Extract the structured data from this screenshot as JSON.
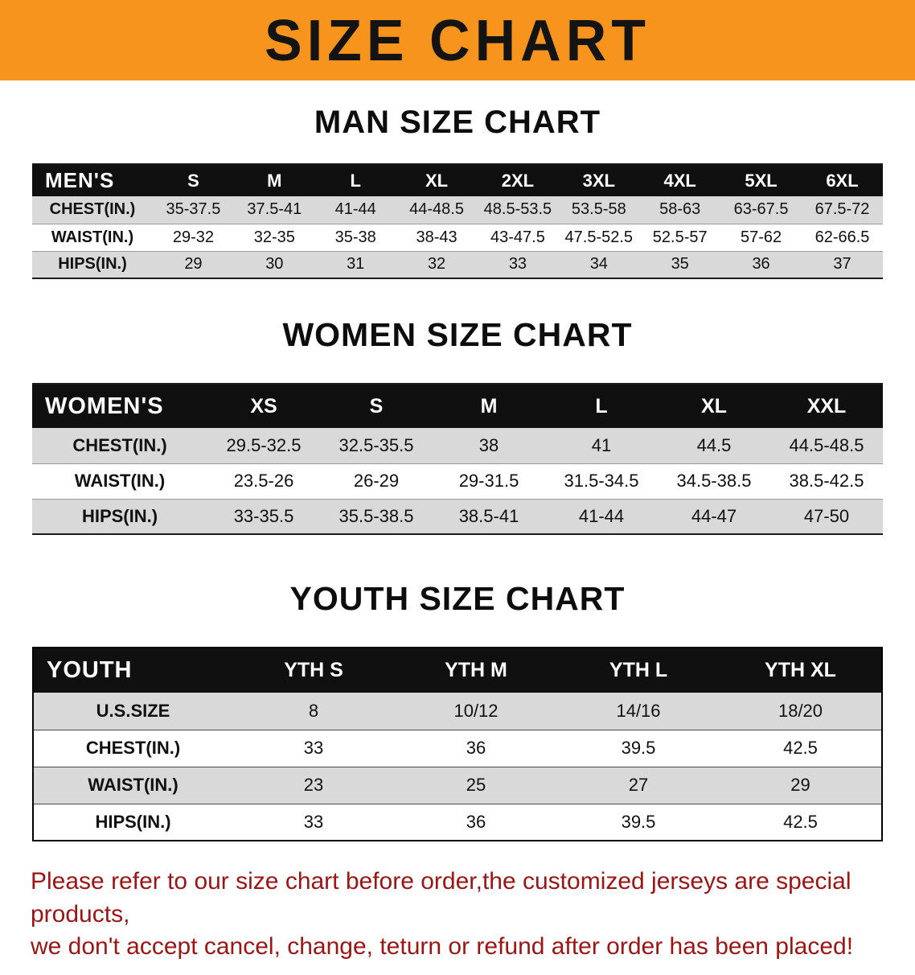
{
  "banner": {
    "title": "SIZE CHART",
    "bg_color": "#f7941d",
    "text_color": "#141414"
  },
  "chart_data": [
    {
      "type": "table",
      "title": "MAN SIZE CHART",
      "header_label": "MEN'S",
      "columns": [
        "S",
        "M",
        "L",
        "XL",
        "2XL",
        "3XL",
        "4XL",
        "5XL",
        "6XL"
      ],
      "rows": [
        {
          "label": "CHEST(IN.)",
          "values": [
            "35-37.5",
            "37.5-41",
            "41-44",
            "44-48.5",
            "48.5-53.5",
            "53.5-58",
            "58-63",
            "63-67.5",
            "67.5-72"
          ]
        },
        {
          "label": "WAIST(IN.)",
          "values": [
            "29-32",
            "32-35",
            "35-38",
            "38-43",
            "43-47.5",
            "47.5-52.5",
            "52.5-57",
            "57-62",
            "62-66.5"
          ]
        },
        {
          "label": "HIPS(IN.)",
          "values": [
            "29",
            "30",
            "31",
            "32",
            "33",
            "34",
            "35",
            "36",
            "37"
          ]
        }
      ]
    },
    {
      "type": "table",
      "title": "WOMEN SIZE CHART",
      "header_label": "WOMEN'S",
      "columns": [
        "XS",
        "S",
        "M",
        "L",
        "XL",
        "XXL"
      ],
      "rows": [
        {
          "label": "CHEST(IN.)",
          "values": [
            "29.5-32.5",
            "32.5-35.5",
            "38",
            "41",
            "44.5",
            "44.5-48.5"
          ]
        },
        {
          "label": "WAIST(IN.)",
          "values": [
            "23.5-26",
            "26-29",
            "29-31.5",
            "31.5-34.5",
            "34.5-38.5",
            "38.5-42.5"
          ]
        },
        {
          "label": "HIPS(IN.)",
          "values": [
            "33-35.5",
            "35.5-38.5",
            "38.5-41",
            "41-44",
            "44-47",
            "47-50"
          ]
        }
      ]
    },
    {
      "type": "table",
      "title": "YOUTH SIZE CHART",
      "header_label": "YOUTH",
      "columns": [
        "YTH S",
        "YTH M",
        "YTH L",
        "YTH XL"
      ],
      "rows": [
        {
          "label": "U.S.SIZE",
          "values": [
            "8",
            "10/12",
            "14/16",
            "18/20"
          ]
        },
        {
          "label": "CHEST(IN.)",
          "values": [
            "33",
            "36",
            "39.5",
            "42.5"
          ]
        },
        {
          "label": "WAIST(IN.)",
          "values": [
            "23",
            "25",
            "27",
            "29"
          ]
        },
        {
          "label": "HIPS(IN.)",
          "values": [
            "33",
            "36",
            "39.5",
            "42.5"
          ]
        }
      ]
    }
  ],
  "footer": {
    "line1": "Please refer to our size chart before order,the customized jerseys are special products,",
    "line2": "we don't accept cancel, change, teturn or refund after order has been placed!",
    "text_color": "#9c1515"
  }
}
